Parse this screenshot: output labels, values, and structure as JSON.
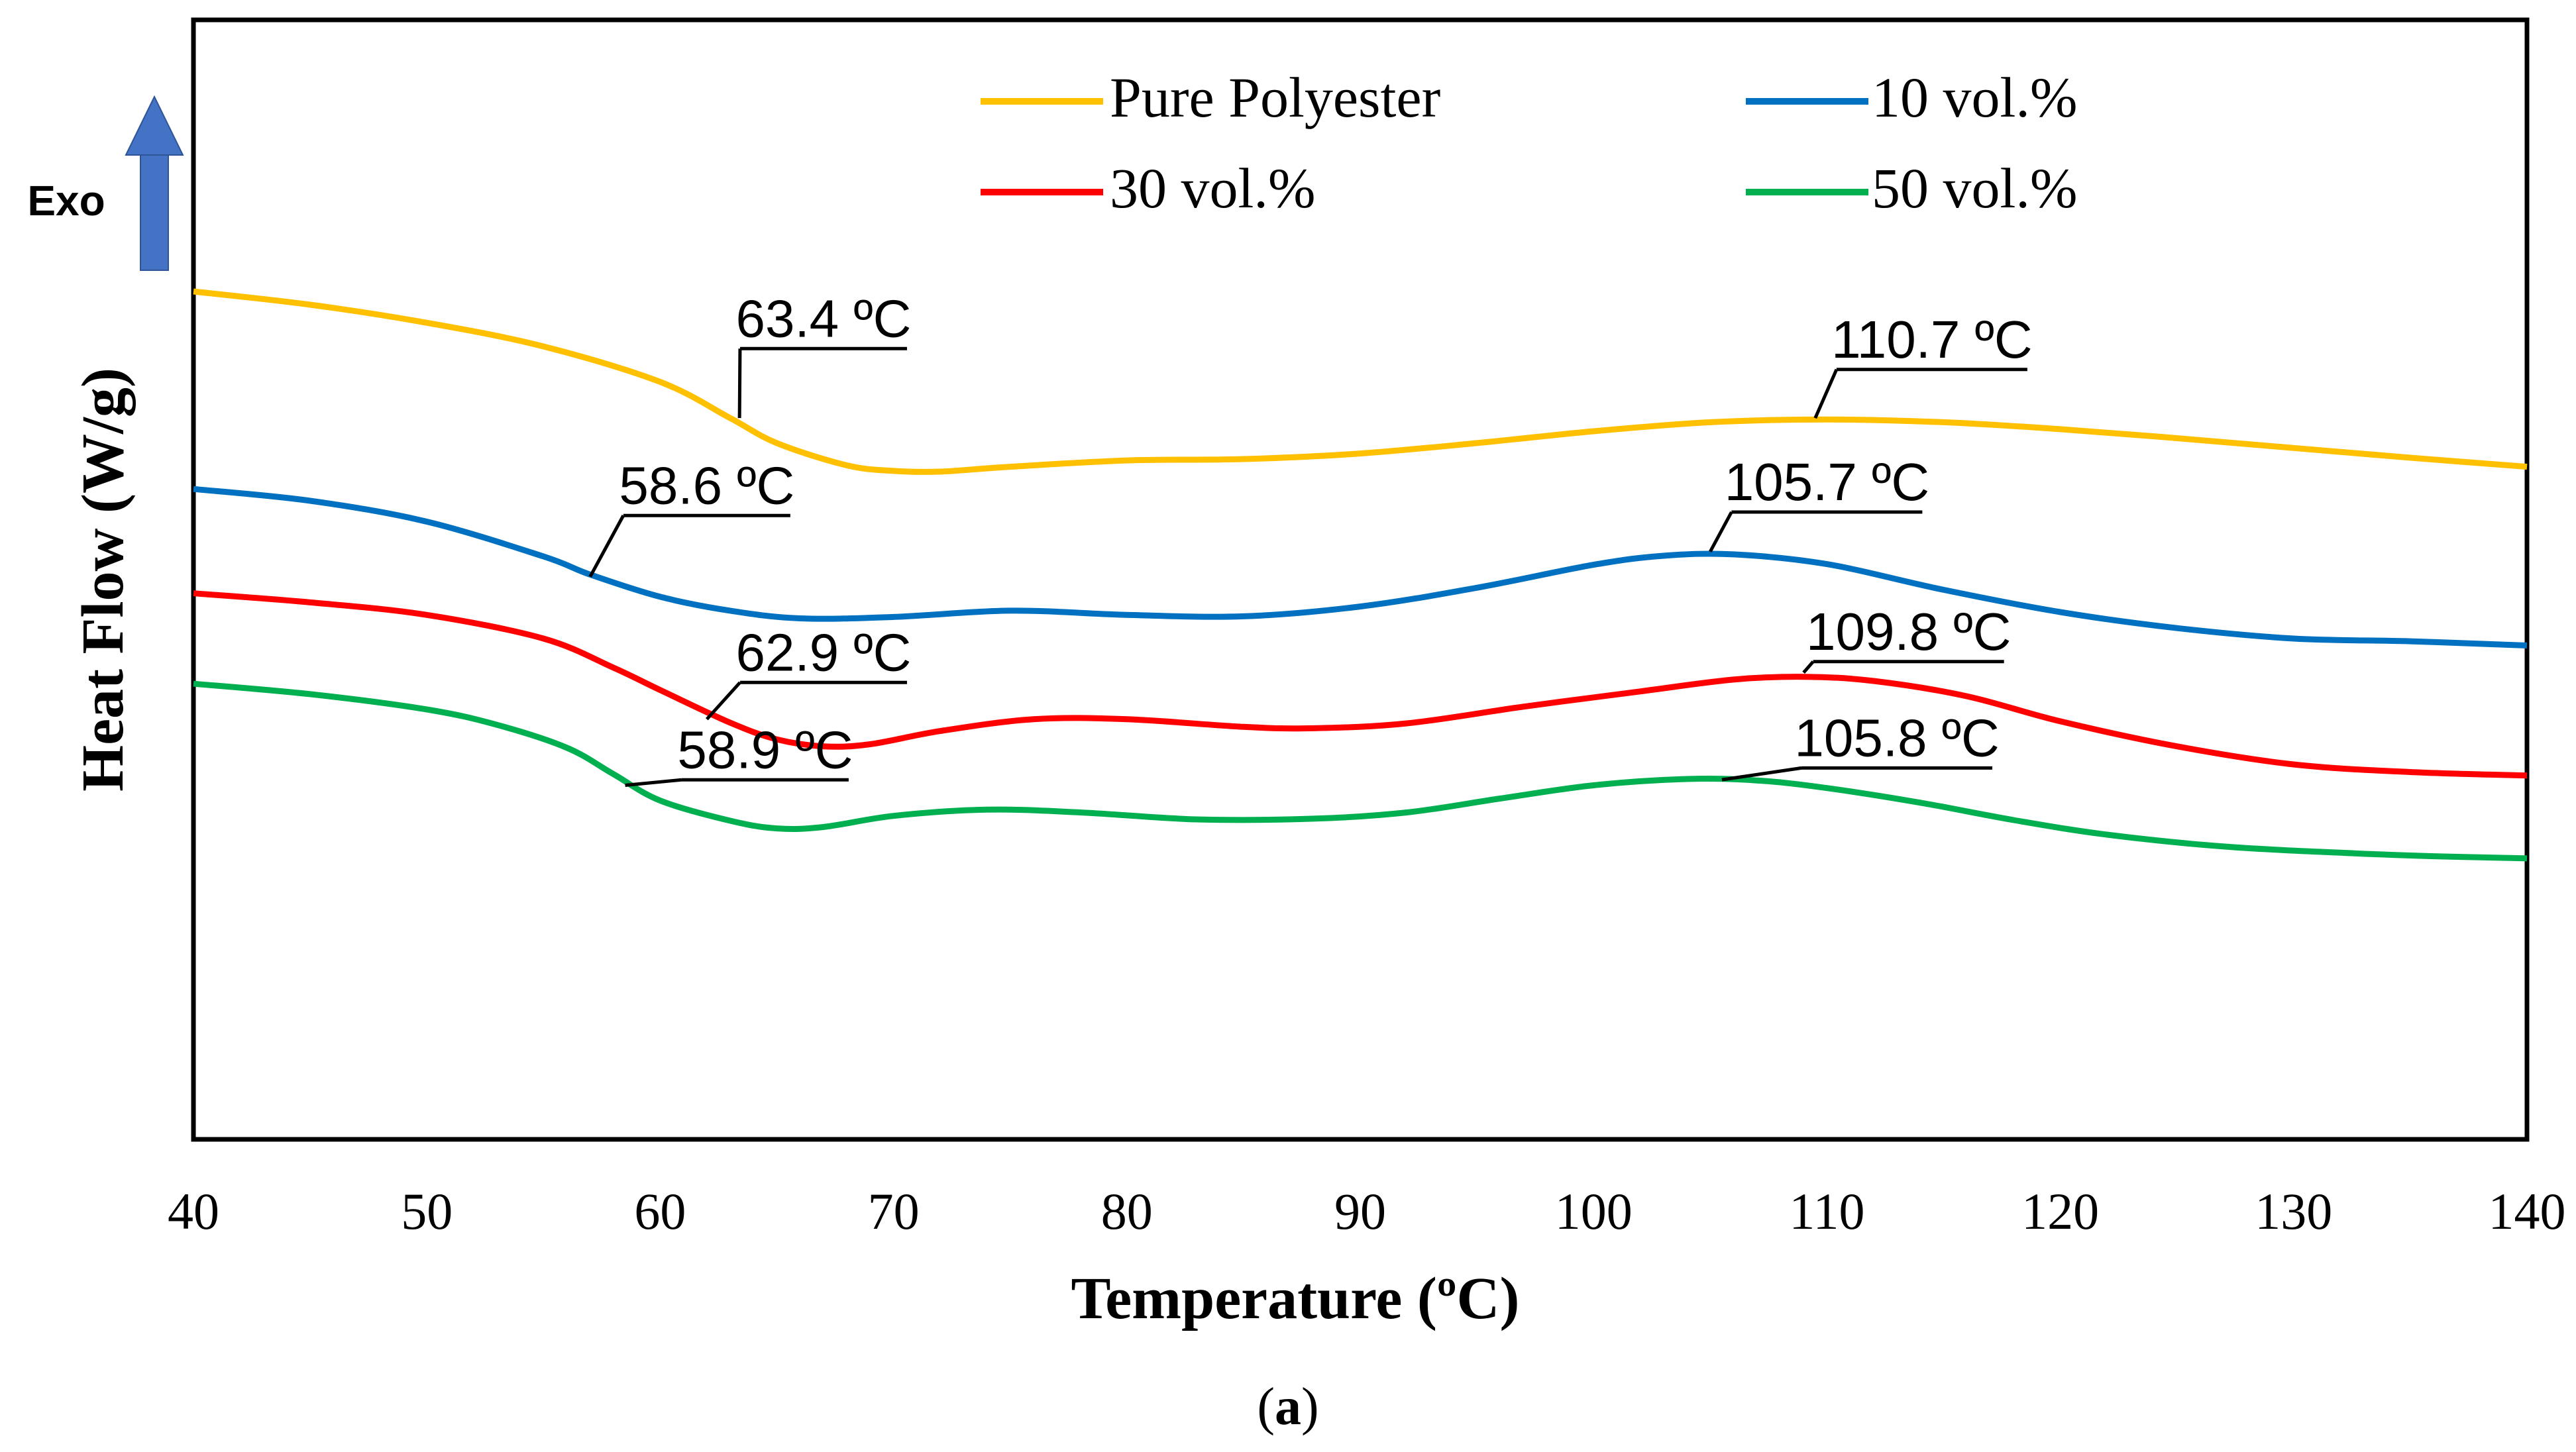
{
  "chart_data": {
    "type": "line",
    "xlabel": "Temperature (ºC)",
    "ylabel": "Heat Flow (W/g)",
    "xlim": [
      40,
      140
    ],
    "ylim": [
      0,
      100
    ],
    "x_ticks": [
      40,
      50,
      60,
      70,
      80,
      90,
      100,
      110,
      120,
      130,
      140
    ],
    "y_units_note": "arbitrary (no y tick labels shown)",
    "exo_label": "Exo",
    "caption": "(a)",
    "legend_position": "top",
    "series": [
      {
        "name": "Pure Polyester",
        "color": "#FFC000",
        "points": [
          [
            40,
            100
          ],
          [
            45,
            98.1
          ],
          [
            50,
            95.5
          ],
          [
            55,
            92.1
          ],
          [
            60,
            87
          ],
          [
            63,
            81.8
          ],
          [
            65,
            78.2
          ],
          [
            68,
            75
          ],
          [
            70,
            74.2
          ],
          [
            72,
            74.1
          ],
          [
            75,
            74.8
          ],
          [
            80,
            75.7
          ],
          [
            85,
            75.9
          ],
          [
            90,
            76.7
          ],
          [
            95,
            78.2
          ],
          [
            100,
            79.9
          ],
          [
            105,
            81.2
          ],
          [
            110,
            81.6
          ],
          [
            115,
            81.2
          ],
          [
            120,
            80.2
          ],
          [
            125,
            78.9
          ],
          [
            130,
            77.5
          ],
          [
            135,
            76.1
          ],
          [
            140,
            74.8
          ]
        ]
      },
      {
        "name": "10 vol.%",
        "color": "#0070C0",
        "points": [
          [
            40,
            71.6
          ],
          [
            45,
            69.9
          ],
          [
            50,
            66.9
          ],
          [
            55,
            61.9
          ],
          [
            57,
            59.3
          ],
          [
            60,
            56.1
          ],
          [
            63,
            54.1
          ],
          [
            66,
            53
          ],
          [
            70,
            53.2
          ],
          [
            75,
            54.1
          ],
          [
            80,
            53.5
          ],
          [
            85,
            53.3
          ],
          [
            90,
            54.7
          ],
          [
            95,
            57.4
          ],
          [
            100,
            60.7
          ],
          [
            103,
            62
          ],
          [
            106,
            62.2
          ],
          [
            110,
            60.8
          ],
          [
            115,
            57.1
          ],
          [
            120,
            53.9
          ],
          [
            125,
            51.6
          ],
          [
            130,
            50.1
          ],
          [
            135,
            49.7
          ],
          [
            140,
            49.1
          ]
        ]
      },
      {
        "name": "30 vol.%",
        "color": "#FF0000",
        "points": [
          [
            40,
            56.6
          ],
          [
            45,
            55.3
          ],
          [
            50,
            53.5
          ],
          [
            55,
            50.1
          ],
          [
            58,
            45.9
          ],
          [
            60,
            42.7
          ],
          [
            63,
            38
          ],
          [
            65,
            35.6
          ],
          [
            67,
            34.6
          ],
          [
            69,
            34.9
          ],
          [
            72,
            36.8
          ],
          [
            76,
            38.5
          ],
          [
            80,
            38.5
          ],
          [
            85,
            37.4
          ],
          [
            88,
            37.2
          ],
          [
            92,
            37.9
          ],
          [
            97,
            40.3
          ],
          [
            102,
            42.5
          ],
          [
            106,
            44.2
          ],
          [
            109,
            44.6
          ],
          [
            112,
            44
          ],
          [
            116,
            41.8
          ],
          [
            120,
            38.2
          ],
          [
            125,
            34.6
          ],
          [
            130,
            32
          ],
          [
            135,
            30.9
          ],
          [
            140,
            30.4
          ]
        ]
      },
      {
        "name": "50 vol.%",
        "color": "#00B050",
        "points": [
          [
            40,
            43.6
          ],
          [
            45,
            42.1
          ],
          [
            50,
            39.9
          ],
          [
            53,
            37.7
          ],
          [
            56,
            34.4
          ],
          [
            58,
            30.6
          ],
          [
            60,
            26.8
          ],
          [
            63,
            23.9
          ],
          [
            65,
            22.8
          ],
          [
            67,
            23
          ],
          [
            70,
            24.6
          ],
          [
            74,
            25.5
          ],
          [
            78,
            25.1
          ],
          [
            83,
            24.1
          ],
          [
            88,
            24.2
          ],
          [
            92,
            25.1
          ],
          [
            96,
            27.1
          ],
          [
            100,
            29
          ],
          [
            104,
            29.9
          ],
          [
            107,
            29.7
          ],
          [
            110,
            28.6
          ],
          [
            114,
            26.5
          ],
          [
            118,
            24
          ],
          [
            122,
            21.9
          ],
          [
            127,
            20.2
          ],
          [
            132,
            19.3
          ],
          [
            136,
            18.8
          ],
          [
            140,
            18.5
          ]
        ]
      }
    ],
    "annotations": [
      {
        "text": "63.4 ºC",
        "series": "Pure Polyester",
        "at": [
          63.4,
          81.8
        ],
        "label_at": [
          67.0,
          93.5
        ]
      },
      {
        "text": "110.7 ºC",
        "series": "Pure Polyester",
        "at": [
          109.5,
          81.8
        ],
        "label_at": [
          114.5,
          90.5
        ]
      },
      {
        "text": "58.6 ºC",
        "series": "10 vol.%",
        "at": [
          57.0,
          59.0
        ],
        "label_at": [
          62.0,
          69.5
        ]
      },
      {
        "text": "105.7 ºC",
        "series": "10 vol.%",
        "at": [
          105.0,
          62.6
        ],
        "label_at": [
          110.0,
          70.0
        ]
      },
      {
        "text": "62.9 ºC",
        "series": "30 vol.%",
        "at": [
          62.0,
          38.5
        ],
        "label_at": [
          67.0,
          45.5
        ]
      },
      {
        "text": "109.8 ºC",
        "series": "30 vol.%",
        "at": [
          109.0,
          45.2
        ],
        "label_at": [
          113.5,
          48.5
        ]
      },
      {
        "text": "58.9 ºC",
        "series": "50 vol.%",
        "at": [
          58.5,
          29.0
        ],
        "label_at": [
          64.5,
          31.5
        ]
      },
      {
        "text": "105.8 ºC",
        "series": "50 vol.%",
        "at": [
          105.5,
          29.8
        ],
        "label_at": [
          113.0,
          33.2
        ]
      }
    ]
  }
}
